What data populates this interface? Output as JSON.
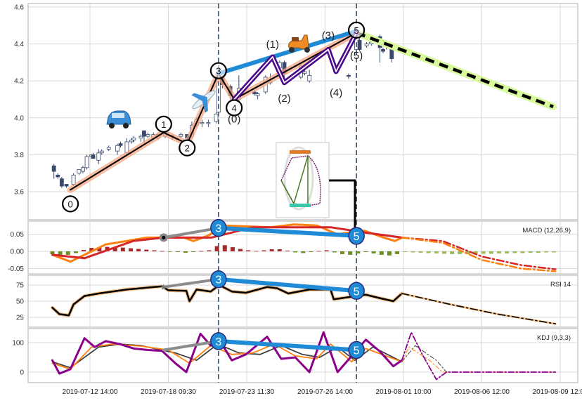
{
  "x_axis": {
    "tick_labels": [
      "2019-07-12 14:00",
      "2019-07-18 09:30",
      "2019-07-23 11:30",
      "2019-07-26 14:00",
      "2019-08-01 10:00",
      "2019-08-06 12:00",
      "2019-08-09 12:00"
    ],
    "note": "t = tick index units (0 = first tick label)"
  },
  "colors": {
    "up": "#ffffff",
    "down": "#3b4a6b",
    "wave": "#f4a582",
    "subwave": "#4b0a8a",
    "trend": "#1f8ad6",
    "projection": "#d9f99d",
    "dif": "#ff7f0e",
    "dea": "#d62728",
    "hist_pos": "#a52a2a",
    "hist_neg": "#6b8e23",
    "hist_proj": "#9bbb59",
    "kdj_k": "#ff7f0e",
    "kdj_d": "#404040",
    "kdj_j": "#8b008b"
  },
  "chart_data": [
    {
      "type": "candlestick",
      "panel": "price",
      "ylim": [
        3.45,
        4.61
      ],
      "yticks": [
        3.6,
        3.8,
        4.0,
        4.2,
        4.4,
        4.6
      ],
      "ytick_labels": [
        "3.6",
        "3.8",
        "4.0",
        "4.2",
        "4.4",
        "4.6"
      ],
      "candles": [
        [
          -0.46,
          3.74,
          3.75,
          3.67,
          3.71
        ],
        [
          -0.41,
          3.69,
          3.7,
          3.67,
          3.68
        ],
        [
          -0.36,
          3.67,
          3.68,
          3.62,
          3.63
        ],
        [
          -0.3,
          3.64,
          3.64,
          3.62,
          3.63
        ],
        [
          -0.21,
          3.64,
          3.7,
          3.63,
          3.69
        ],
        [
          -0.14,
          3.7,
          3.72,
          3.69,
          3.72
        ],
        [
          -0.09,
          3.71,
          3.74,
          3.7,
          3.73
        ],
        [
          -0.04,
          3.73,
          3.8,
          3.72,
          3.79
        ],
        [
          0.02,
          3.79,
          3.8,
          3.78,
          3.8
        ],
        [
          0.04,
          3.8,
          3.81,
          3.78,
          3.78
        ],
        [
          0.11,
          3.77,
          3.83,
          3.75,
          3.81
        ],
        [
          0.15,
          3.81,
          3.83,
          3.8,
          3.82
        ],
        [
          0.24,
          3.83,
          3.85,
          3.82,
          3.84
        ],
        [
          0.35,
          3.82,
          3.86,
          3.8,
          3.85
        ],
        [
          0.39,
          3.86,
          3.87,
          3.84,
          3.85
        ],
        [
          0.47,
          3.81,
          3.89,
          3.8,
          3.87
        ],
        [
          0.53,
          3.87,
          3.89,
          3.86,
          3.88
        ],
        [
          0.56,
          3.88,
          3.9,
          3.87,
          3.89
        ],
        [
          0.65,
          3.89,
          3.91,
          3.87,
          3.9
        ],
        [
          0.69,
          3.93,
          3.93,
          3.86,
          3.9
        ],
        [
          0.74,
          3.9,
          3.92,
          3.89,
          3.91
        ],
        [
          0.81,
          3.89,
          3.92,
          3.88,
          3.91
        ],
        [
          0.87,
          3.89,
          3.92,
          3.88,
          3.91
        ],
        [
          0.96,
          3.9,
          3.93,
          3.89,
          3.92
        ],
        [
          1.05,
          3.9,
          3.91,
          3.88,
          3.905
        ],
        [
          1.16,
          3.9,
          3.92,
          3.89,
          3.91
        ],
        [
          1.24,
          3.91,
          3.91,
          3.87,
          3.89
        ],
        [
          1.3,
          3.9,
          3.98,
          3.89,
          3.96
        ],
        [
          1.36,
          3.96,
          4.0,
          3.95,
          3.99
        ],
        [
          1.43,
          3.97,
          3.99,
          3.95,
          3.975
        ],
        [
          1.51,
          3.97,
          3.99,
          3.95,
          3.975
        ],
        [
          1.61,
          3.98,
          4.03,
          3.97,
          4.02
        ],
        [
          1.64,
          4.03,
          4.25,
          4.02,
          4.24
        ],
        [
          1.69,
          4.22,
          4.24,
          4.16,
          4.18
        ],
        [
          1.79,
          4.17,
          4.18,
          4.1,
          4.12
        ],
        [
          1.9,
          4.1,
          4.23,
          4.08,
          4.16
        ],
        [
          2.1,
          4.14,
          4.15,
          4.12,
          4.13
        ],
        [
          2.14,
          4.12,
          4.14,
          4.1,
          4.13
        ],
        [
          2.24,
          4.14,
          4.23,
          4.13,
          4.22
        ],
        [
          2.3,
          4.19,
          4.24,
          4.18,
          4.2
        ],
        [
          2.42,
          4.27,
          4.31,
          4.26,
          4.3
        ],
        [
          2.48,
          4.3,
          4.31,
          4.22,
          4.24
        ],
        [
          2.69,
          4.22,
          4.3,
          4.21,
          4.28
        ],
        [
          2.74,
          4.24,
          4.26,
          4.23,
          4.25
        ],
        [
          2.8,
          4.2,
          4.26,
          4.19,
          4.23
        ],
        [
          3.13,
          4.27,
          4.28,
          4.24,
          4.25
        ],
        [
          3.3,
          4.23,
          4.24,
          4.21,
          4.225
        ],
        [
          3.4,
          4.37,
          4.46,
          4.36,
          4.44
        ],
        [
          3.44,
          4.42,
          4.44,
          4.36,
          4.37
        ],
        [
          3.53,
          4.39,
          4.41,
          4.38,
          4.4
        ],
        [
          3.59,
          4.4,
          4.42,
          4.39,
          4.41
        ],
        [
          3.7,
          4.44,
          4.45,
          4.3,
          4.38
        ],
        [
          3.74,
          4.37,
          4.38,
          4.35,
          4.36
        ],
        [
          3.78,
          4.39,
          4.42,
          4.37,
          4.41
        ],
        [
          3.85,
          4.38,
          4.4,
          4.3,
          4.32
        ]
      ],
      "wave_main": {
        "points": [
          [
            -0.25,
            3.61
          ],
          [
            0.94,
            3.92
          ],
          [
            1.24,
            3.86
          ],
          [
            1.64,
            4.24
          ],
          [
            1.84,
            4.1
          ],
          [
            3.4,
            4.46
          ]
        ],
        "labels": [
          "0",
          "1",
          "2",
          "3",
          "4",
          "5"
        ]
      },
      "wave_sub": {
        "points": [
          [
            1.84,
            4.1
          ],
          [
            2.33,
            4.33
          ],
          [
            2.48,
            4.19
          ],
          [
            3.04,
            4.37
          ],
          [
            3.14,
            4.25
          ],
          [
            3.4,
            4.46
          ]
        ],
        "labels": [
          "(0)",
          "(1)",
          "(2)",
          "(3)",
          "(4)",
          "(5)"
        ]
      },
      "trend_line": [
        [
          1.64,
          4.24
        ],
        [
          3.4,
          4.47
        ]
      ],
      "projection": [
        [
          3.4,
          4.46
        ],
        [
          5.91,
          4.06
        ]
      ],
      "event_markers_t": [
        1.64,
        3.4
      ]
    },
    {
      "type": "line",
      "panel": "macd",
      "title": "MACD (12,26,9)",
      "ylim": [
        -0.065,
        0.09
      ],
      "yticks": [
        -0.05,
        0.0,
        0.05
      ],
      "ytick_labels": [
        "-0.05",
        "0.00",
        "0.05"
      ],
      "dif": [
        [
          -0.48,
          -0.01
        ],
        [
          -0.25,
          -0.03
        ],
        [
          0.2,
          0.02
        ],
        [
          0.73,
          0.04
        ],
        [
          1.2,
          0.04
        ],
        [
          1.32,
          0.03
        ],
        [
          1.5,
          0.045
        ],
        [
          1.72,
          0.075
        ],
        [
          2.3,
          0.07
        ],
        [
          2.6,
          0.078
        ],
        [
          2.9,
          0.075
        ],
        [
          3.15,
          0.05
        ],
        [
          3.5,
          0.06
        ],
        [
          3.75,
          0.04
        ],
        [
          3.89,
          0.03
        ],
        [
          3.98,
          0.04
        ]
      ],
      "dea": [
        [
          -0.48,
          -0.01
        ],
        [
          -0.07,
          -0.02
        ],
        [
          0.55,
          0.03
        ],
        [
          0.94,
          0.04
        ],
        [
          1.55,
          0.04
        ],
        [
          2.08,
          0.07
        ],
        [
          3.07,
          0.07
        ],
        [
          3.5,
          0.055
        ],
        [
          3.98,
          0.04
        ]
      ],
      "dif_proj": [
        [
          3.98,
          0.04
        ],
        [
          4.5,
          0.025
        ],
        [
          5.0,
          -0.025
        ],
        [
          5.5,
          -0.05
        ],
        [
          5.94,
          -0.058
        ]
      ],
      "dea_proj": [
        [
          3.98,
          0.04
        ],
        [
          4.5,
          0.03
        ],
        [
          5.0,
          -0.015
        ],
        [
          5.5,
          -0.04
        ],
        [
          5.94,
          -0.052
        ]
      ],
      "histogram": {
        "t0": -0.48,
        "step": 0.1,
        "projected_from_index": 45,
        "values": [
          -0.008,
          -0.01,
          -0.01,
          -0.005,
          0.004,
          0.01,
          0.012,
          0.013,
          0.012,
          0.011,
          0.009,
          0.007,
          0.005,
          0.003,
          0.001,
          -0.001,
          -0.002,
          -0.004,
          -0.002,
          0.001,
          0.003,
          0.015,
          0.018,
          0.012,
          0.007,
          0.003,
          0.001,
          0.003,
          0.006,
          0.006,
          0.002,
          -0.003,
          -0.005,
          -0.002,
          0.001,
          0.003,
          -0.003,
          -0.008,
          -0.01,
          -0.006,
          -0.002,
          -0.006,
          -0.01,
          -0.012,
          -0.008,
          -0.002,
          -0.003,
          -0.004,
          -0.005,
          -0.006,
          -0.007,
          -0.008,
          -0.008,
          -0.008,
          -0.008,
          -0.007,
          -0.007,
          -0.006,
          -0.006,
          -0.005,
          -0.005,
          -0.004,
          -0.004,
          -0.003,
          -0.003
        ]
      },
      "divergence": {
        "start": [
          0.94,
          0.04
        ],
        "peak3": [
          1.64,
          0.068
        ],
        "peak5": [
          3.4,
          0.045
        ],
        "labels": [
          "3",
          "5"
        ]
      }
    },
    {
      "type": "line",
      "panel": "rsi",
      "title": "RSI 14",
      "ylim": [
        8,
        92
      ],
      "yticks": [
        25,
        50,
        75
      ],
      "ytick_labels": [
        "25",
        "50",
        "75"
      ],
      "rsi": [
        [
          -0.48,
          40
        ],
        [
          -0.39,
          30
        ],
        [
          -0.27,
          28
        ],
        [
          -0.21,
          45
        ],
        [
          -0.07,
          58
        ],
        [
          0.11,
          62
        ],
        [
          0.47,
          68
        ],
        [
          0.92,
          73
        ],
        [
          1.0,
          67
        ],
        [
          1.23,
          66
        ],
        [
          1.27,
          50
        ],
        [
          1.36,
          68
        ],
        [
          1.54,
          65
        ],
        [
          1.65,
          75
        ],
        [
          1.81,
          65
        ],
        [
          1.99,
          63
        ],
        [
          2.26,
          72
        ],
        [
          2.39,
          70
        ],
        [
          2.53,
          62
        ],
        [
          2.8,
          68
        ],
        [
          3.07,
          68
        ],
        [
          3.11,
          53
        ],
        [
          3.34,
          57
        ],
        [
          3.52,
          60
        ],
        [
          3.69,
          55
        ],
        [
          3.87,
          50
        ],
        [
          3.98,
          62
        ]
      ],
      "rsi_proj": [
        [
          3.98,
          62
        ],
        [
          4.6,
          45
        ],
        [
          5.2,
          30
        ],
        [
          5.94,
          15
        ]
      ],
      "divergence": {
        "start": [
          0.94,
          72
        ],
        "peak3": [
          1.64,
          84
        ],
        "peak5": [
          3.4,
          66
        ],
        "labels": [
          "3",
          "5"
        ]
      }
    },
    {
      "type": "line",
      "panel": "kdj",
      "title": "KDJ (9,3,3)",
      "ylim": [
        -35,
        145
      ],
      "yticks": [
        0,
        100
      ],
      "ytick_labels": [
        "0",
        "100"
      ],
      "k": [
        [
          -0.48,
          30
        ],
        [
          -0.25,
          10
        ],
        [
          0.02,
          85
        ],
        [
          0.29,
          95
        ],
        [
          0.65,
          88
        ],
        [
          1.0,
          75
        ],
        [
          1.27,
          30
        ],
        [
          1.54,
          90
        ],
        [
          1.81,
          60
        ],
        [
          2.08,
          65
        ],
        [
          2.35,
          95
        ],
        [
          2.62,
          55
        ],
        [
          2.89,
          45
        ],
        [
          3.07,
          95
        ],
        [
          3.34,
          35
        ],
        [
          3.52,
          80
        ],
        [
          3.98,
          35
        ]
      ],
      "d": [
        [
          -0.48,
          35
        ],
        [
          -0.25,
          15
        ],
        [
          0.11,
          85
        ],
        [
          0.38,
          95
        ],
        [
          0.65,
          90
        ],
        [
          1.09,
          65
        ],
        [
          1.36,
          40
        ],
        [
          1.63,
          95
        ],
        [
          1.9,
          65
        ],
        [
          2.17,
          60
        ],
        [
          2.44,
          90
        ],
        [
          2.71,
          60
        ],
        [
          2.93,
          50
        ],
        [
          3.16,
          85
        ],
        [
          3.38,
          40
        ],
        [
          3.61,
          85
        ],
        [
          3.98,
          35
        ]
      ],
      "j": [
        [
          -0.48,
          40
        ],
        [
          -0.39,
          -5
        ],
        [
          -0.25,
          10
        ],
        [
          -0.07,
          115
        ],
        [
          0.06,
          85
        ],
        [
          0.2,
          105
        ],
        [
          0.38,
          95
        ],
        [
          0.56,
          80
        ],
        [
          0.74,
          75
        ],
        [
          0.92,
          72
        ],
        [
          1.09,
          30
        ],
        [
          1.23,
          0
        ],
        [
          1.41,
          130
        ],
        [
          1.54,
          90
        ],
        [
          1.65,
          110
        ],
        [
          1.81,
          40
        ],
        [
          1.99,
          60
        ],
        [
          2.26,
          120
        ],
        [
          2.44,
          45
        ],
        [
          2.62,
          50
        ],
        [
          2.8,
          0
        ],
        [
          2.98,
          135
        ],
        [
          3.16,
          0
        ],
        [
          3.34,
          55
        ],
        [
          3.52,
          110
        ],
        [
          3.7,
          70
        ],
        [
          3.87,
          20
        ],
        [
          3.98,
          40
        ]
      ],
      "k_proj": [
        [
          3.98,
          35
        ],
        [
          4.07,
          85
        ],
        [
          4.33,
          40
        ],
        [
          4.5,
          0
        ],
        [
          5.94,
          0
        ]
      ],
      "d_proj": [
        [
          3.98,
          35
        ],
        [
          4.15,
          90
        ],
        [
          4.42,
          40
        ],
        [
          4.55,
          0
        ],
        [
          5.94,
          0
        ]
      ],
      "j_proj": [
        [
          3.98,
          40
        ],
        [
          4.1,
          135
        ],
        [
          4.24,
          60
        ],
        [
          4.42,
          -25
        ],
        [
          4.55,
          0
        ],
        [
          5.94,
          0
        ]
      ],
      "divergence": {
        "start": [
          0.94,
          75
        ],
        "peak3": [
          1.64,
          105
        ],
        "peak5": [
          3.4,
          75
        ],
        "labels": [
          "3",
          "5"
        ]
      }
    }
  ]
}
